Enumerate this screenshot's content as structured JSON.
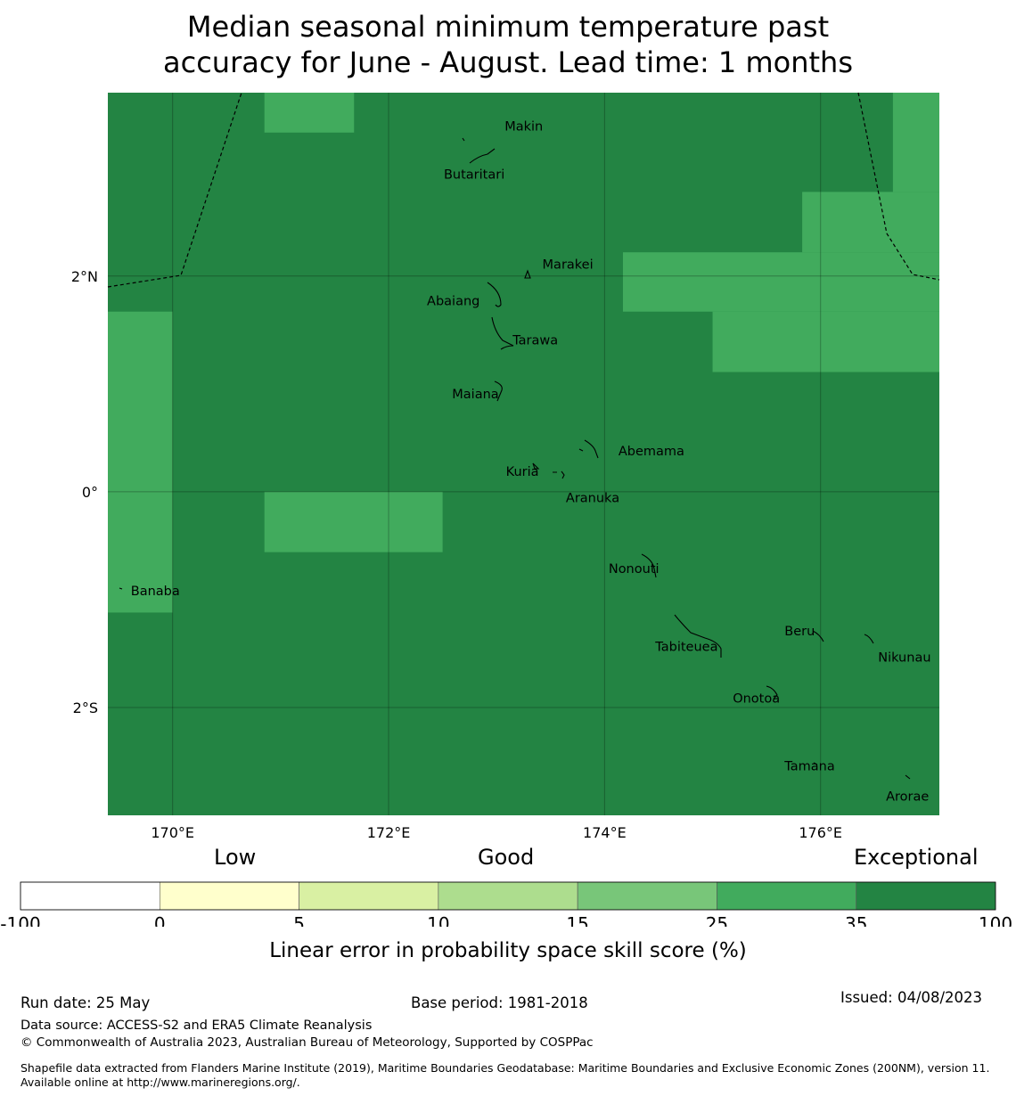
{
  "title_line1": "Median seasonal minimum temperature past",
  "title_line2": "accuracy for June - August. Lead time: 1 months",
  "map": {
    "extent": {
      "lon_min": 169.4,
      "lon_max": 177.1,
      "lat_min": -3.0,
      "lat_max": 3.7
    },
    "x_ticks": [
      {
        "lon": 170,
        "label": "170°E"
      },
      {
        "lon": 172,
        "label": "172°E"
      },
      {
        "lon": 174,
        "label": "174°E"
      },
      {
        "lon": 176,
        "label": "176°E"
      }
    ],
    "y_ticks": [
      {
        "lat": 2,
        "label": "2°N"
      },
      {
        "lat": 0,
        "label": "0°"
      },
      {
        "lat": -2,
        "label": "2°S"
      }
    ],
    "base_category": "35-100",
    "cells_25_35": [
      {
        "lon_min": 170.85,
        "lon_max": 171.68,
        "lat_min": 3.33,
        "lat_max": 3.7
      },
      {
        "lon_min": 169.4,
        "lon_max": 170.0,
        "lat_min": -1.12,
        "lat_max": 1.67
      },
      {
        "lon_min": 170.85,
        "lon_max": 172.5,
        "lat_min": -0.56,
        "lat_max": 0.0
      },
      {
        "lon_min": 176.67,
        "lon_max": 177.1,
        "lat_min": 2.78,
        "lat_max": 3.7
      },
      {
        "lon_min": 175.83,
        "lon_max": 177.1,
        "lat_min": 2.22,
        "lat_max": 2.78
      },
      {
        "lon_min": 174.17,
        "lon_max": 177.1,
        "lat_min": 1.67,
        "lat_max": 2.22
      },
      {
        "lon_min": 175.0,
        "lon_max": 177.1,
        "lat_min": 1.11,
        "lat_max": 1.67
      }
    ],
    "islands": [
      {
        "name": "Makin",
        "lon": 173.0,
        "lat": 3.35
      },
      {
        "name": "Butaritari",
        "lon": 172.8,
        "lat": 3.02
      },
      {
        "name": "Marakei",
        "lon": 173.3,
        "lat": 2.1
      },
      {
        "name": "Abaiang",
        "lon": 172.85,
        "lat": 1.83
      },
      {
        "name": "Tarawa",
        "lon": 173.0,
        "lat": 1.45
      },
      {
        "name": "Maiana",
        "lon": 173.05,
        "lat": 0.95
      },
      {
        "name": "Abemama",
        "lon": 173.88,
        "lat": 0.42
      },
      {
        "name": "Kuria",
        "lon": 173.4,
        "lat": 0.23
      },
      {
        "name": "Aranuka",
        "lon": 173.6,
        "lat": 0.17
      },
      {
        "name": "Nonouti",
        "lon": 174.4,
        "lat": -0.67
      },
      {
        "name": "Banaba",
        "lon": 169.53,
        "lat": -0.87
      },
      {
        "name": "Tabiteuea",
        "lon": 174.8,
        "lat": -1.35
      },
      {
        "name": "Beru",
        "lon": 175.98,
        "lat": -1.33
      },
      {
        "name": "Nikunau",
        "lon": 176.45,
        "lat": -1.37
      },
      {
        "name": "Onotoa",
        "lon": 175.55,
        "lat": -1.83
      },
      {
        "name": "Tamana",
        "lon": 175.98,
        "lat": -2.5
      },
      {
        "name": "Arorae",
        "lon": 176.82,
        "lat": -2.65
      }
    ]
  },
  "colorbar": {
    "category_labels": [
      {
        "text": "Low",
        "at": 5
      },
      {
        "text": "Good",
        "at": 10
      },
      {
        "text": "Exceptional",
        "at": 35
      }
    ],
    "bins": [
      {
        "from": "-100",
        "to": "0",
        "color": "#ffffff"
      },
      {
        "from": "0",
        "to": "5",
        "color": "#ffffcc"
      },
      {
        "from": "5",
        "to": "10",
        "color": "#d9f0a3"
      },
      {
        "from": "10",
        "to": "15",
        "color": "#addd8e"
      },
      {
        "from": "15",
        "to": "25",
        "color": "#78c679"
      },
      {
        "from": "25",
        "to": "35",
        "color": "#41ab5d"
      },
      {
        "from": "35",
        "to": "100",
        "color": "#238443"
      }
    ],
    "tick_labels": [
      "-100",
      "0",
      "5",
      "10",
      "15",
      "25",
      "35",
      "100"
    ],
    "label": "Linear error in probability space skill score (%)"
  },
  "footer": {
    "run_date": "Run date: 25 May",
    "base_period": "Base period: 1981-2018",
    "issued": "Issued: 04/08/2023",
    "data_source": "Data source: ACCESS-S2 and ERA5 Climate Reanalysis",
    "copyright": "© Commonwealth of Australia 2023, Australian Bureau of Meteorology, Supported by COSPPac",
    "shapefile": "Shapefile data extracted from Flanders Marine Institute (2019), Maritime Boundaries Geodatabase: Maritime Boundaries and Exclusive Economic Zones (200NM), version 11. Available online at http://www.marineregions.org/."
  }
}
